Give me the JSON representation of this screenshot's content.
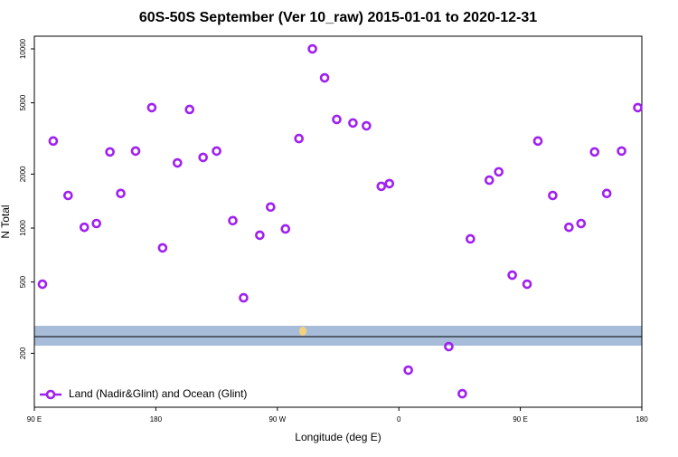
{
  "chart_data": {
    "type": "scatter",
    "title": "60S-50S September (Ver 10_raw)   2015-01-01 to 2020-12-31",
    "xlabel": "Longitude (deg E)",
    "ylabel": "N Total",
    "xlim": [
      90,
      540
    ],
    "ylim": [
      100,
      11770
    ],
    "log_y": true,
    "xticks": [
      {
        "value": 90,
        "label": "90 E"
      },
      {
        "value": 180,
        "label": "180"
      },
      {
        "value": 270,
        "label": "90 W"
      },
      {
        "value": 360,
        "label": "0"
      },
      {
        "value": 450,
        "label": "90 E"
      },
      {
        "value": 540,
        "label": "180"
      }
    ],
    "yticks": [
      200,
      500,
      1000,
      2000,
      5000,
      10000
    ],
    "legend": "lower left",
    "x": [
      96,
      104,
      115,
      127,
      136,
      146,
      154,
      165,
      177,
      185,
      196,
      205,
      215,
      225,
      237,
      245,
      257,
      265,
      276,
      286,
      296,
      305,
      314,
      326,
      336,
      347,
      353,
      367,
      397,
      407,
      413,
      427,
      434,
      444,
      455,
      463,
      474,
      486,
      495,
      505,
      514,
      525,
      537
    ],
    "series": [
      {
        "name": "Land (Nadir&Glint) and Ocean (Glint)",
        "color": "#a020f0",
        "values": [
          486,
          3060,
          1520,
          1010,
          1060,
          2660,
          1560,
          2690,
          4700,
          775,
          2310,
          4590,
          2480,
          2690,
          1100,
          408,
          912,
          1310,
          989,
          3160,
          10000,
          6890,
          4040,
          3860,
          3720,
          1710,
          1770,
          161,
          218,
          119,
          870,
          1850,
          2060,
          546,
          486,
          3060,
          1520,
          1010,
          1060,
          2660,
          1560,
          2690,
          4700
        ]
      }
    ]
  }
}
